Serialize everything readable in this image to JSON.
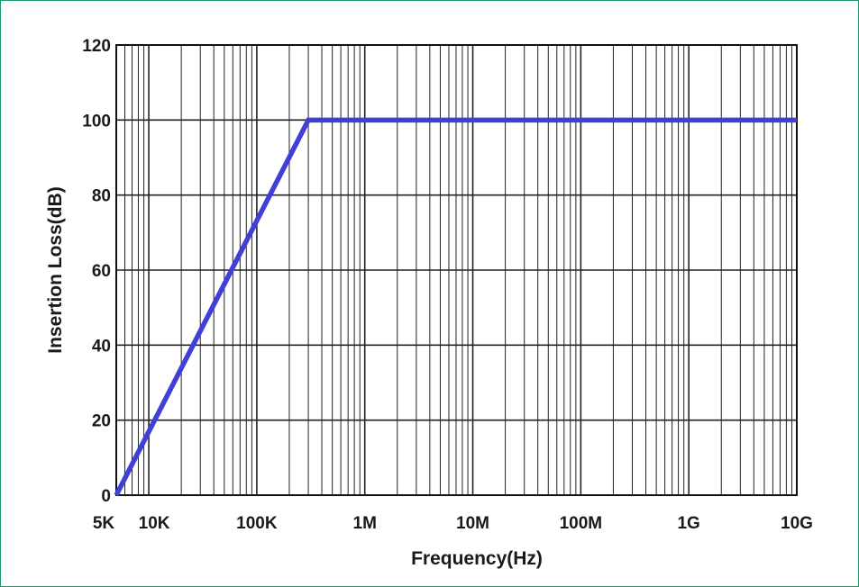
{
  "chart_data": {
    "type": "line",
    "title": "",
    "xlabel": "Frequency(Hz)",
    "ylabel": "Insertion Loss(dB)",
    "x_scale": "log",
    "xlim": [
      5000,
      10000000000
    ],
    "ylim": [
      0,
      120
    ],
    "grid": true,
    "x_ticks": [
      {
        "value": 5000,
        "label": "5K"
      },
      {
        "value": 10000,
        "label": "10K"
      },
      {
        "value": 100000,
        "label": "100K"
      },
      {
        "value": 1000000,
        "label": "1M"
      },
      {
        "value": 10000000,
        "label": "10M"
      },
      {
        "value": 100000000,
        "label": "100M"
      },
      {
        "value": 1000000000,
        "label": "1G"
      },
      {
        "value": 10000000000,
        "label": "10G"
      }
    ],
    "y_ticks": [
      {
        "value": 0,
        "label": "0"
      },
      {
        "value": 20,
        "label": "20"
      },
      {
        "value": 40,
        "label": "40"
      },
      {
        "value": 60,
        "label": "60"
      },
      {
        "value": 80,
        "label": "80"
      },
      {
        "value": 100,
        "label": "100"
      },
      {
        "value": 120,
        "label": "120"
      }
    ],
    "series": [
      {
        "color": "#4040d8",
        "x": [
          5000,
          300000,
          10000000000
        ],
        "y": [
          0,
          100,
          100
        ]
      }
    ]
  }
}
